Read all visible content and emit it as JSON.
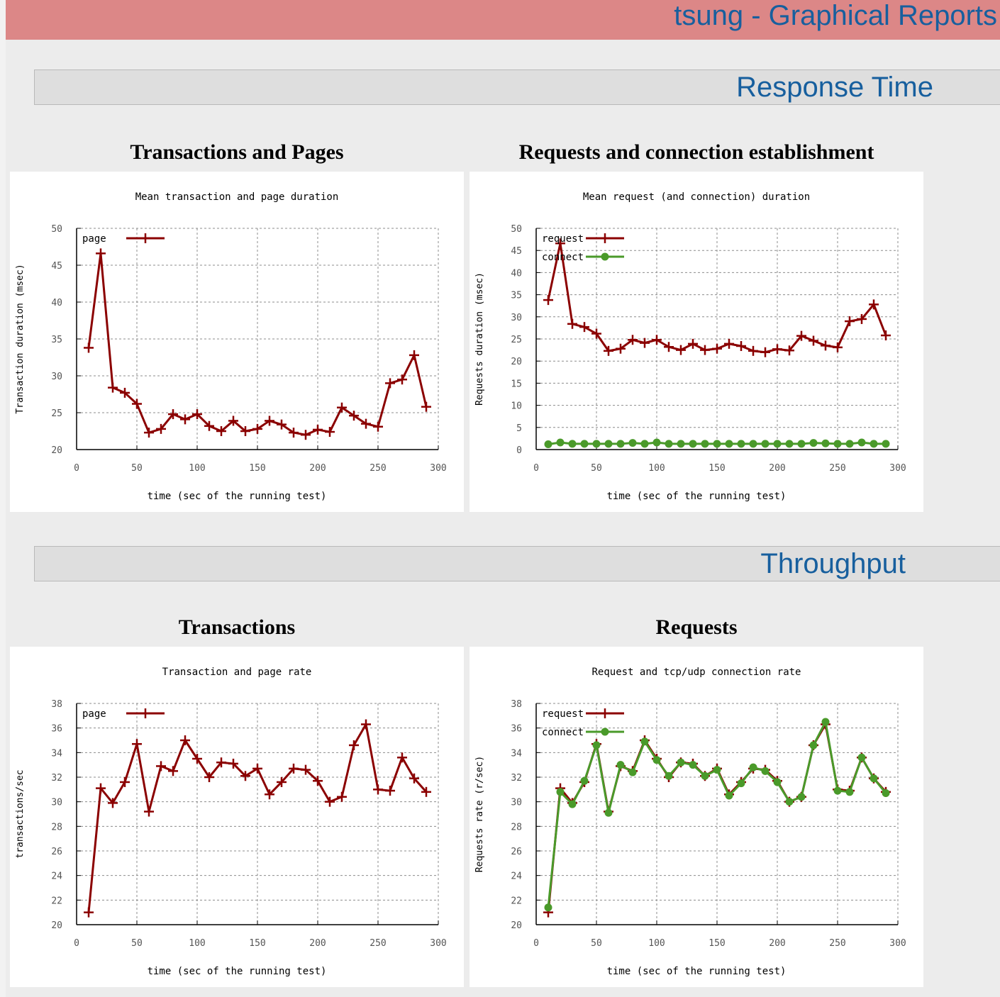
{
  "app": {
    "title": "tsung - Graphical Reports"
  },
  "sections": [
    {
      "title": "Response Time"
    },
    {
      "title": "Throughput"
    }
  ],
  "charts": [
    {
      "heading": "Transactions and Pages"
    },
    {
      "heading": "Requests and connection establishment"
    },
    {
      "heading": "Transactions"
    },
    {
      "heading": "Requests"
    }
  ],
  "colors": {
    "series_red": "#8b0000",
    "series_green": "#4a9a2a",
    "banner": "#dc8787",
    "title_blue": "#175f9e"
  },
  "chart_data": [
    {
      "type": "line",
      "title": "Mean transaction and page duration",
      "xlabel": "time (sec of the running test)",
      "ylabel": "Transaction duration (msec)",
      "xlim": [
        0,
        300
      ],
      "ylim": [
        20,
        50
      ],
      "xticks": [
        0,
        50,
        100,
        150,
        200,
        250,
        300
      ],
      "yticks": [
        20,
        25,
        30,
        35,
        40,
        45,
        50
      ],
      "grid": true,
      "legend_position": "top-left",
      "x": [
        10,
        20,
        30,
        40,
        50,
        60,
        70,
        80,
        90,
        100,
        110,
        120,
        130,
        140,
        150,
        160,
        170,
        180,
        190,
        200,
        210,
        220,
        230,
        240,
        250,
        260,
        270,
        280,
        290
      ],
      "series": [
        {
          "name": "page",
          "color": "#8b0000",
          "marker": "plus",
          "values": [
            33.8,
            46.6,
            28.4,
            27.7,
            26.2,
            22.3,
            22.8,
            24.8,
            24.1,
            24.8,
            23.2,
            22.5,
            23.9,
            22.5,
            22.8,
            23.9,
            23.4,
            22.3,
            22.0,
            22.7,
            22.4,
            25.7,
            24.6,
            23.5,
            23.1,
            29.0,
            29.5,
            32.8,
            25.8
          ]
        }
      ]
    },
    {
      "type": "line",
      "title": "Mean request (and connection) duration",
      "xlabel": "time (sec of the running test)",
      "ylabel": "Requests duration (msec)",
      "xlim": [
        0,
        300
      ],
      "ylim": [
        0,
        50
      ],
      "xticks": [
        0,
        50,
        100,
        150,
        200,
        250,
        300
      ],
      "yticks": [
        0,
        5,
        10,
        15,
        20,
        25,
        30,
        35,
        40,
        45,
        50
      ],
      "grid": true,
      "legend_position": "top-left",
      "x": [
        10,
        20,
        30,
        40,
        50,
        60,
        70,
        80,
        90,
        100,
        110,
        120,
        130,
        140,
        150,
        160,
        170,
        180,
        190,
        200,
        210,
        220,
        230,
        240,
        250,
        260,
        270,
        280,
        290
      ],
      "series": [
        {
          "name": "request",
          "color": "#8b0000",
          "marker": "plus",
          "values": [
            33.8,
            46.6,
            28.4,
            27.7,
            26.2,
            22.3,
            22.8,
            24.8,
            24.1,
            24.8,
            23.2,
            22.5,
            23.9,
            22.5,
            22.8,
            23.9,
            23.4,
            22.3,
            22.0,
            22.7,
            22.4,
            25.7,
            24.6,
            23.5,
            23.1,
            29.0,
            29.5,
            32.8,
            25.8
          ]
        },
        {
          "name": "connect",
          "color": "#4a9a2a",
          "marker": "dot",
          "values": [
            1.2,
            1.6,
            1.3,
            1.3,
            1.3,
            1.3,
            1.3,
            1.5,
            1.3,
            1.6,
            1.3,
            1.3,
            1.3,
            1.3,
            1.3,
            1.3,
            1.3,
            1.3,
            1.3,
            1.3,
            1.3,
            1.3,
            1.5,
            1.4,
            1.3,
            1.3,
            1.6,
            1.3,
            1.3
          ]
        }
      ]
    },
    {
      "type": "line",
      "title": "Transaction and page rate",
      "xlabel": "time (sec of the running test)",
      "ylabel": "transactions/sec",
      "xlim": [
        0,
        300
      ],
      "ylim": [
        20,
        38
      ],
      "xticks": [
        0,
        50,
        100,
        150,
        200,
        250,
        300
      ],
      "yticks": [
        20,
        22,
        24,
        26,
        28,
        30,
        32,
        34,
        36,
        38
      ],
      "grid": true,
      "legend_position": "top-left",
      "x": [
        10,
        20,
        30,
        40,
        50,
        60,
        70,
        80,
        90,
        100,
        110,
        120,
        130,
        140,
        150,
        160,
        170,
        180,
        190,
        200,
        210,
        220,
        230,
        240,
        250,
        260,
        270,
        280,
        290
      ],
      "series": [
        {
          "name": "page",
          "color": "#8b0000",
          "marker": "plus",
          "values": [
            21.0,
            31.1,
            29.9,
            31.6,
            34.7,
            29.2,
            32.9,
            32.5,
            35.0,
            33.5,
            32.0,
            33.2,
            33.1,
            32.1,
            32.7,
            30.6,
            31.6,
            32.7,
            32.6,
            31.7,
            30.0,
            30.4,
            34.6,
            36.3,
            31.0,
            30.9,
            33.6,
            31.9,
            30.8
          ]
        }
      ]
    },
    {
      "type": "line",
      "title": "Request and tcp/udp connection rate",
      "xlabel": "time (sec of the running test)",
      "ylabel": "Requests rate (r/sec)",
      "xlim": [
        0,
        300
      ],
      "ylim": [
        20,
        38
      ],
      "xticks": [
        0,
        50,
        100,
        150,
        200,
        250,
        300
      ],
      "yticks": [
        20,
        22,
        24,
        26,
        28,
        30,
        32,
        34,
        36,
        38
      ],
      "grid": true,
      "legend_position": "top-left",
      "x": [
        10,
        20,
        30,
        40,
        50,
        60,
        70,
        80,
        90,
        100,
        110,
        120,
        130,
        140,
        150,
        160,
        170,
        180,
        190,
        200,
        210,
        220,
        230,
        240,
        250,
        260,
        270,
        280,
        290
      ],
      "series": [
        {
          "name": "request",
          "color": "#8b0000",
          "marker": "plus",
          "values": [
            21.0,
            31.1,
            29.9,
            31.6,
            34.7,
            29.2,
            32.9,
            32.5,
            35.0,
            33.5,
            32.0,
            33.2,
            33.1,
            32.1,
            32.7,
            30.6,
            31.6,
            32.7,
            32.6,
            31.7,
            30.0,
            30.4,
            34.6,
            36.3,
            31.0,
            30.9,
            33.6,
            31.9,
            30.8
          ]
        },
        {
          "name": "connect",
          "color": "#4a9a2a",
          "marker": "dot",
          "values": [
            21.4,
            30.8,
            29.8,
            31.7,
            34.6,
            29.1,
            33.0,
            32.4,
            34.9,
            33.4,
            32.1,
            33.2,
            33.0,
            32.1,
            32.6,
            30.5,
            31.5,
            32.8,
            32.5,
            31.6,
            30.0,
            30.4,
            34.6,
            36.5,
            30.9,
            30.8,
            33.6,
            31.9,
            30.7
          ]
        }
      ]
    }
  ]
}
